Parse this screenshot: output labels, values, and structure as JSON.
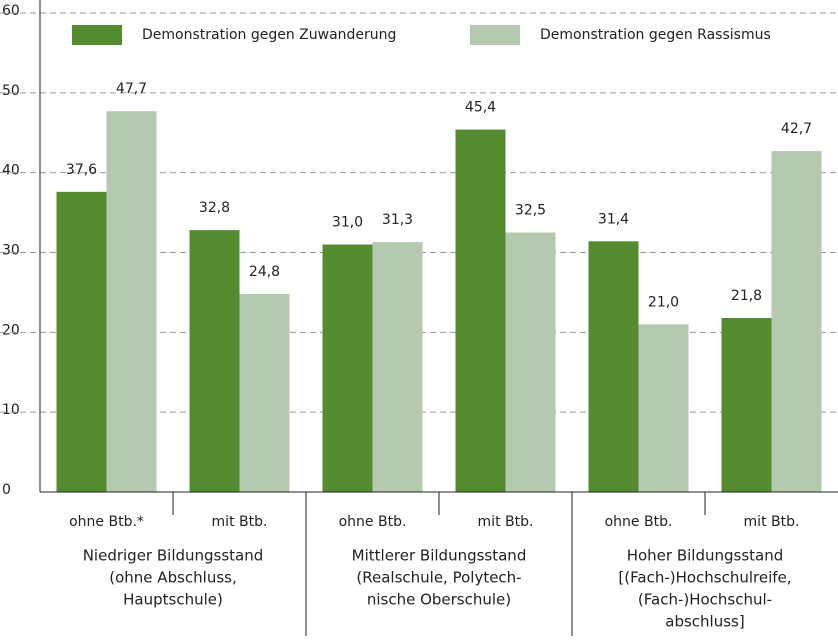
{
  "chart_data": {
    "type": "bar",
    "categories": [
      "ohne Btb.*",
      "mit Btb.",
      "ohne Btb.",
      "mit Btb.",
      "ohne Btb.",
      "mit Btb."
    ],
    "groups": [
      {
        "lines": [
          "Niedriger Bildungsstand",
          "(ohne Abschluss,",
          "Hauptschule)"
        ]
      },
      {
        "lines": [
          "Mittlerer Bildungsstand",
          "(Realschule, Polytech-",
          "nische Oberschule)"
        ]
      },
      {
        "lines": [
          "Hoher Bildungsstand",
          "[(Fach-)Hochschulreife,",
          "(Fach-)Hochschul-",
          "abschluss]"
        ]
      }
    ],
    "series": [
      {
        "name": "Demonstration gegen Zuwanderung",
        "color": "#548b2f",
        "values": [
          37.6,
          32.8,
          31.0,
          45.4,
          31.4,
          21.8
        ],
        "value_labels": [
          "37,6",
          "32,8",
          "31,0",
          "45,4",
          "31,4",
          "21,8"
        ]
      },
      {
        "name": "Demonstration gegen Rassismus",
        "color": "#b5c8b0",
        "values": [
          47.7,
          24.8,
          31.3,
          32.5,
          21.0,
          42.7
        ],
        "value_labels": [
          "47,7",
          "24,8",
          "31,3",
          "32,5",
          "21,0",
          "42,7"
        ]
      }
    ],
    "ylim": [
      0,
      60
    ],
    "yticks": [
      0,
      10,
      20,
      30,
      40,
      50,
      60
    ],
    "grid": true
  }
}
